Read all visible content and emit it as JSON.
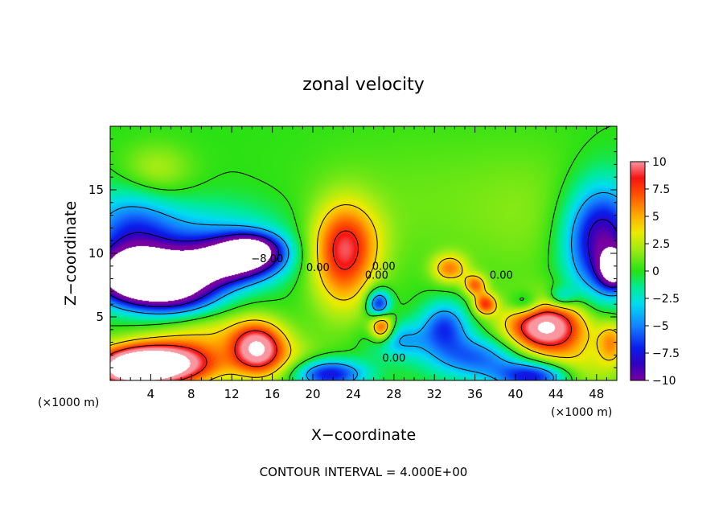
{
  "chart_data": {
    "type": "heatmap",
    "title": "zonal velocity",
    "xlabel": "X−coordinate",
    "ylabel": "Z−coordinate",
    "x_unit_left": "(×1000 m)",
    "x_unit_right": "(×1000 m)",
    "xlim": [
      0,
      50
    ],
    "ylim": [
      0,
      20
    ],
    "x_ticks": [
      "4",
      "8",
      "12",
      "16",
      "20",
      "24",
      "28",
      "32",
      "36",
      "40",
      "44",
      "48"
    ],
    "x_tick_values": [
      4,
      8,
      12,
      16,
      20,
      24,
      28,
      32,
      36,
      40,
      44,
      48
    ],
    "y_ticks": [
      "5",
      "10",
      "15"
    ],
    "y_tick_values": [
      5,
      10,
      15
    ],
    "colorbar": {
      "range": [
        -10,
        10
      ],
      "ticks": [
        "10",
        "7.5",
        "5",
        "2.5",
        "0",
        "−2.5",
        "−5",
        "−7.5",
        "−10"
      ],
      "tick_values": [
        10,
        7.5,
        5,
        2.5,
        0,
        -2.5,
        -5,
        -7.5,
        -10
      ]
    },
    "contour_labels": [
      {
        "text": "0.00",
        "x": 20.5,
        "y": 8.6
      },
      {
        "text": "−8.00",
        "x": 15.5,
        "y": 9.3
      },
      {
        "text": "0.00",
        "x": 26.3,
        "y": 8.0
      },
      {
        "text": "0.00",
        "x": 27.0,
        "y": 8.7
      },
      {
        "text": "0.00",
        "x": 38.6,
        "y": 8.0
      },
      {
        "text": "0.00",
        "x": 28.0,
        "y": 1.5
      }
    ],
    "footer": "CONTOUR INTERVAL = 4.000E+00",
    "features": [
      {
        "x": 2.5,
        "y": 8.2,
        "v": -16,
        "sx": 2.8,
        "sy": 1.4
      },
      {
        "x": 6.5,
        "y": 7.5,
        "v": -12,
        "sx": 3.0,
        "sy": 1.5
      },
      {
        "x": 11.5,
        "y": 9.3,
        "v": -11,
        "sx": 3.2,
        "sy": 1.2
      },
      {
        "x": 14.0,
        "y": 10.2,
        "v": -10,
        "sx": 2.0,
        "sy": 0.9
      },
      {
        "x": 9.0,
        "y": 11.0,
        "v": -4,
        "sx": 6.0,
        "sy": 2.0
      },
      {
        "x": 2.0,
        "y": 11.5,
        "v": -5,
        "sx": 3.0,
        "sy": 2.5
      },
      {
        "x": 4.5,
        "y": 16.5,
        "v": 2.5,
        "sx": 2.5,
        "sy": 1.5
      },
      {
        "x": 5.0,
        "y": 1.3,
        "v": 14,
        "sx": 4.0,
        "sy": 1.2
      },
      {
        "x": 2.0,
        "y": 0.8,
        "v": 8,
        "sx": 2.5,
        "sy": 1.0
      },
      {
        "x": 14.5,
        "y": 2.5,
        "v": 10,
        "sx": 1.8,
        "sy": 1.4
      },
      {
        "x": 10.0,
        "y": 3.8,
        "v": 3,
        "sx": 4.0,
        "sy": 1.2
      },
      {
        "x": 23.0,
        "y": 9.5,
        "v": 6.5,
        "sx": 2.2,
        "sy": 3.0
      },
      {
        "x": 23.5,
        "y": 11.0,
        "v": 3,
        "sx": 2.5,
        "sy": 2.0
      },
      {
        "x": 26.8,
        "y": 4.2,
        "v": 8,
        "sx": 0.8,
        "sy": 0.8
      },
      {
        "x": 26.5,
        "y": 6.0,
        "v": -8,
        "sx": 0.8,
        "sy": 0.8
      },
      {
        "x": 28.5,
        "y": 3.2,
        "v": -4,
        "sx": 2.0,
        "sy": 1.0
      },
      {
        "x": 33.0,
        "y": 4.3,
        "v": -6,
        "sx": 1.6,
        "sy": 1.3
      },
      {
        "x": 35.0,
        "y": 2.0,
        "v": -4,
        "sx": 3.0,
        "sy": 1.2
      },
      {
        "x": 33.5,
        "y": 8.8,
        "v": 5.5,
        "sx": 1.2,
        "sy": 0.8
      },
      {
        "x": 37.0,
        "y": 6.0,
        "v": 7,
        "sx": 0.8,
        "sy": 0.6
      },
      {
        "x": 36.0,
        "y": 7.5,
        "v": 6,
        "sx": 0.8,
        "sy": 0.6
      },
      {
        "x": 43.0,
        "y": 4.2,
        "v": 12,
        "sx": 2.8,
        "sy": 1.5
      },
      {
        "x": 41.0,
        "y": 6.0,
        "v": -4,
        "sx": 1.2,
        "sy": 0.7
      },
      {
        "x": 44.5,
        "y": 6.5,
        "v": -4,
        "sx": 1.0,
        "sy": 0.6
      },
      {
        "x": 48.5,
        "y": 11.0,
        "v": -10,
        "sx": 2.5,
        "sy": 3.0
      },
      {
        "x": 49.8,
        "y": 8.8,
        "v": -12,
        "sx": 1.0,
        "sy": 1.0
      },
      {
        "x": 49.5,
        "y": 3.0,
        "v": 5,
        "sx": 1.0,
        "sy": 1.2
      },
      {
        "x": 21.5,
        "y": 0.5,
        "v": -8,
        "sx": 2.5,
        "sy": 0.8
      },
      {
        "x": 42.0,
        "y": 0.3,
        "v": -8,
        "sx": 2.5,
        "sy": 0.8
      },
      {
        "x": 38.0,
        "y": 1.5,
        "v": -2.5,
        "sx": 3.0,
        "sy": 1.2
      },
      {
        "x": 46.0,
        "y": 0.8,
        "v": 3,
        "sx": 3.0,
        "sy": 1.5
      },
      {
        "x": 17.5,
        "y": 1.5,
        "v": 2.5,
        "sx": 2.5,
        "sy": 1.5
      },
      {
        "x": 30.0,
        "y": 14.0,
        "v": 1,
        "sx": 8.0,
        "sy": 4.0
      },
      {
        "x": 42.0,
        "y": 13.0,
        "v": 1.2,
        "sx": 5.0,
        "sy": 4.0
      }
    ]
  }
}
